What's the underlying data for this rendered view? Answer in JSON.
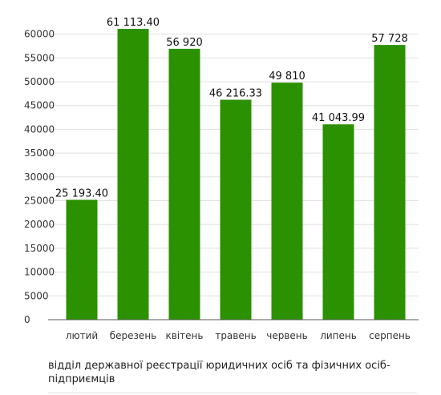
{
  "chart_data": {
    "type": "bar",
    "categories": [
      "лютий",
      "березень",
      "квітень",
      "травень",
      "червень",
      "липень",
      "серпень"
    ],
    "values": [
      25193.4,
      61113.4,
      56920,
      46216.33,
      49810,
      41043.99,
      57728
    ],
    "value_labels": [
      "25 193.40",
      "61 113.40",
      "56 920",
      "46 216.33",
      "49 810",
      "41 043.99",
      "57 728"
    ],
    "y_ticks": [
      "0",
      "5000",
      "10000",
      "15000",
      "20000",
      "25000",
      "30000",
      "35000",
      "40000",
      "45000",
      "50000",
      "55000",
      "60000"
    ],
    "ylim": [
      0,
      62500
    ],
    "grid": true,
    "bar_color": "#2b9100",
    "grid_color": "#e0e0e0",
    "axis_color": "#555555"
  },
  "caption": "відділ державної реєстрації юридичних осіб та фізичних осіб-підприємців"
}
